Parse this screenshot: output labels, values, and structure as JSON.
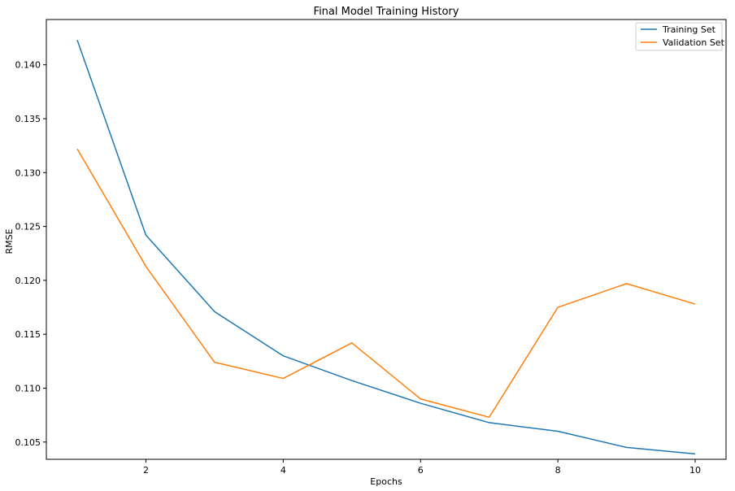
{
  "chart_data": {
    "type": "line",
    "title": "Final Model Training History",
    "xlabel": "Epochs",
    "ylabel": "RMSE",
    "x": [
      1,
      2,
      3,
      4,
      5,
      6,
      7,
      8,
      9,
      10
    ],
    "xlim": [
      0.55,
      10.45
    ],
    "ylim": [
      0.1034,
      0.1442
    ],
    "xticks": [
      2,
      4,
      6,
      8,
      10
    ],
    "yticks": [
      0.105,
      0.11,
      0.115,
      0.12,
      0.125,
      0.13,
      0.135,
      0.14
    ],
    "ytick_labels": [
      "0.105",
      "0.110",
      "0.115",
      "0.120",
      "0.125",
      "0.130",
      "0.135",
      "0.140"
    ],
    "grid": false,
    "legend": "top-right",
    "series": [
      {
        "name": "Training Set",
        "color": "#1f77b4",
        "values": [
          0.1423,
          0.1242,
          0.1171,
          0.113,
          0.1107,
          0.1086,
          0.1068,
          0.106,
          0.1045,
          0.1039
        ]
      },
      {
        "name": "Validation Set",
        "color": "#ff7f0e",
        "values": [
          0.1322,
          0.1213,
          0.1124,
          0.1109,
          0.1142,
          0.109,
          0.1073,
          0.1175,
          0.1197,
          0.1178
        ]
      }
    ]
  }
}
